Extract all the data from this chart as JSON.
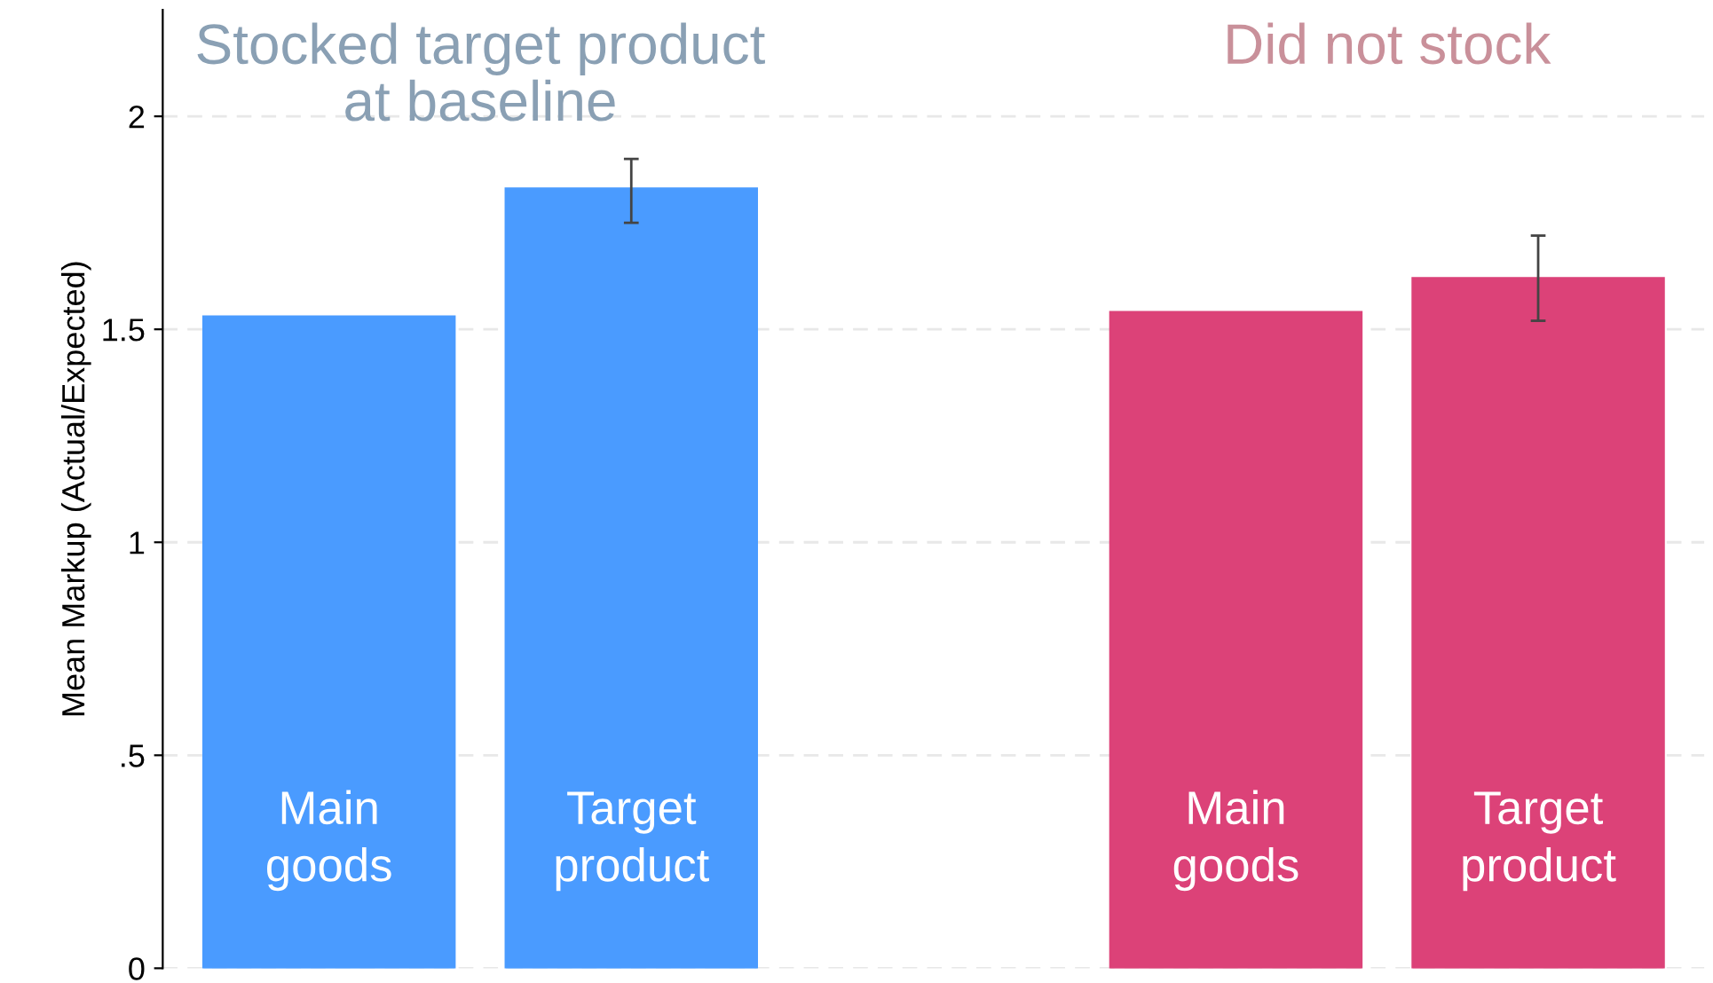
{
  "chart_data": {
    "type": "bar",
    "ylabel": "Mean Markup (Actual/Expected)",
    "categories": [
      "Main\ngoods",
      "Target\nproduct",
      null,
      "Main\ngoods",
      "Target\nproduct"
    ],
    "values": [
      1.53,
      1.83,
      null,
      1.54,
      1.62
    ],
    "colors": [
      "#4a9bff",
      "#4a9bff",
      null,
      "#dc4278",
      "#dc4278"
    ],
    "errors": [
      null,
      [
        1.75,
        1.9
      ],
      null,
      null,
      [
        1.52,
        1.72
      ]
    ],
    "annotations": [
      "Stocked target product\nat baseline",
      "Did not stock"
    ],
    "ylim": [
      0,
      2.25
    ],
    "yticks": [
      0,
      {
        "value": 0.5,
        "label": ".5"
      },
      1,
      1.5,
      2
    ],
    "grid": "y"
  }
}
